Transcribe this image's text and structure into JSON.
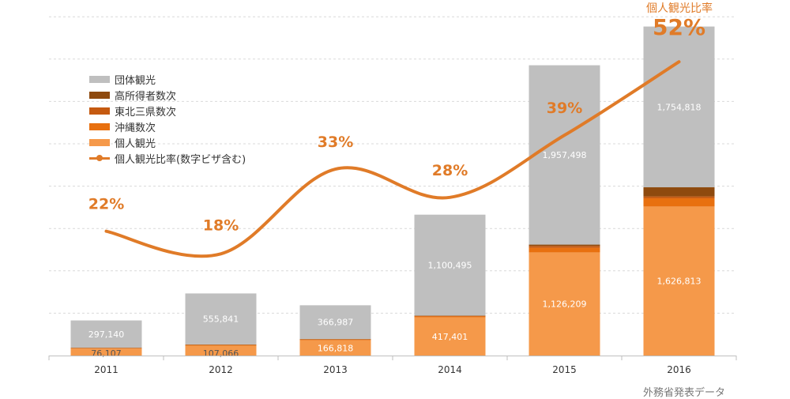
{
  "chart_data": {
    "type": "bar",
    "categories": [
      "2011",
      "2012",
      "2013",
      "2014",
      "2015",
      "2016"
    ],
    "stacked": true,
    "series": [
      {
        "name": "個人観光",
        "color": "#F5994A",
        "values": [
          76107,
          107066,
          166818,
          417401,
          1126209,
          1626813
        ],
        "labels": [
          "76,107",
          "107,066",
          "166,818",
          "417,401",
          "1,126,209",
          "1,626,813"
        ]
      },
      {
        "name": "沖縄数次",
        "color": "#E8700F",
        "values": [
          5000,
          8000,
          8000,
          10000,
          50000,
          90000
        ]
      },
      {
        "name": "東北三県数次",
        "color": "#C55A11",
        "values": [
          2000,
          2000,
          3000,
          5000,
          20000,
          20000
        ]
      },
      {
        "name": "高所得者数次",
        "color": "#8E4A0E",
        "values": [
          3000,
          5000,
          4000,
          5000,
          15000,
          100000
        ]
      },
      {
        "name": "団体観光",
        "color": "#BFBFBF",
        "values": [
          297140,
          555841,
          366987,
          1100495,
          1957498,
          1754818
        ],
        "labels": [
          "297,140",
          "555,841",
          "366,987",
          "1,100,495",
          "1,957,498",
          "1,754,818"
        ]
      }
    ],
    "line_series": {
      "name": "個人観光比率(数字ビザ含む)",
      "color": "#E07B28",
      "values": [
        22,
        18,
        33,
        28,
        39,
        52
      ],
      "labels": [
        "22%",
        "18%",
        "33%",
        "28%",
        "39%",
        "52%"
      ]
    },
    "bar_ylim": [
      0,
      3700000
    ],
    "line_ylim": [
      0,
      60
    ],
    "grid": true,
    "legend_position": "top-left"
  },
  "legend": {
    "items": [
      {
        "label": "団体観光",
        "color": "#BFBFBF",
        "kind": "box"
      },
      {
        "label": "高所得者数次",
        "color": "#8E4A0E",
        "kind": "box"
      },
      {
        "label": "東北三県数次",
        "color": "#C55A11",
        "kind": "box"
      },
      {
        "label": "沖縄数次",
        "color": "#E8700F",
        "kind": "box"
      },
      {
        "label": "個人観光",
        "color": "#F5994A",
        "kind": "box"
      },
      {
        "label": "個人観光比率(数字ビザ含む)",
        "color": "#E07B28",
        "kind": "line"
      }
    ]
  },
  "top_label": "個人観光比率",
  "source": "外務省発表データ"
}
